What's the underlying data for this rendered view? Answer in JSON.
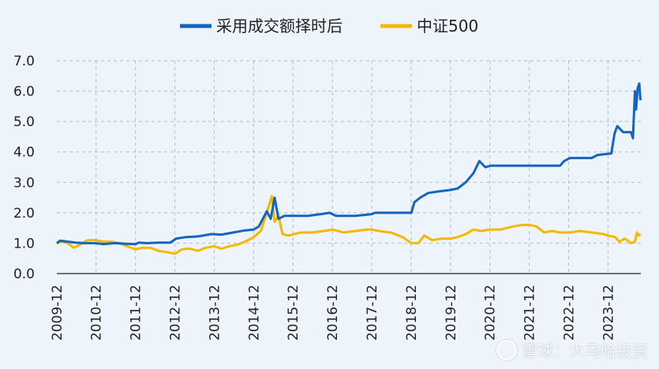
{
  "chart_data": {
    "type": "line",
    "title": "",
    "xlabel": "",
    "ylabel": "",
    "ylim": [
      0,
      7
    ],
    "xlim": [
      2009.92,
      2024.75
    ],
    "y_ticks": [
      "0.0",
      "1.0",
      "2.0",
      "3.0",
      "4.0",
      "5.0",
      "6.0",
      "7.0"
    ],
    "x_ticks": [
      "2009-12",
      "2010-12",
      "2011-12",
      "2012-12",
      "2013-12",
      "2014-12",
      "2015-12",
      "2016-12",
      "2017-12",
      "2018-12",
      "2019-12",
      "2020-12",
      "2021-12",
      "2022-12",
      "2023-12"
    ],
    "grid": true,
    "legend_position": "top-center",
    "series": [
      {
        "name": "采用成交额择时后",
        "color": "#1565c0",
        "points": [
          [
            2009.92,
            1.0
          ],
          [
            2010.0,
            1.08
          ],
          [
            2010.2,
            1.05
          ],
          [
            2010.4,
            1.02
          ],
          [
            2010.6,
            1.0
          ],
          [
            2010.9,
            1.0
          ],
          [
            2011.1,
            0.97
          ],
          [
            2011.4,
            1.0
          ],
          [
            2011.7,
            0.98
          ],
          [
            2011.92,
            0.97
          ],
          [
            2012.0,
            1.02
          ],
          [
            2012.2,
            1.0
          ],
          [
            2012.5,
            1.02
          ],
          [
            2012.8,
            1.02
          ],
          [
            2012.95,
            1.15
          ],
          [
            2013.2,
            1.2
          ],
          [
            2013.5,
            1.22
          ],
          [
            2013.85,
            1.3
          ],
          [
            2014.1,
            1.28
          ],
          [
            2014.4,
            1.35
          ],
          [
            2014.7,
            1.42
          ],
          [
            2014.92,
            1.45
          ],
          [
            2015.05,
            1.55
          ],
          [
            2015.25,
            2.05
          ],
          [
            2015.35,
            1.8
          ],
          [
            2015.45,
            2.5
          ],
          [
            2015.55,
            1.8
          ],
          [
            2015.7,
            1.9
          ],
          [
            2015.95,
            1.9
          ],
          [
            2016.3,
            1.9
          ],
          [
            2016.6,
            1.95
          ],
          [
            2016.85,
            2.0
          ],
          [
            2017.0,
            1.9
          ],
          [
            2017.5,
            1.9
          ],
          [
            2017.9,
            1.95
          ],
          [
            2018.0,
            2.0
          ],
          [
            2018.6,
            2.0
          ],
          [
            2018.92,
            2.0
          ],
          [
            2019.0,
            2.35
          ],
          [
            2019.15,
            2.5
          ],
          [
            2019.35,
            2.65
          ],
          [
            2019.6,
            2.7
          ],
          [
            2019.92,
            2.75
          ],
          [
            2020.1,
            2.8
          ],
          [
            2020.3,
            3.0
          ],
          [
            2020.5,
            3.3
          ],
          [
            2020.65,
            3.7
          ],
          [
            2020.8,
            3.5
          ],
          [
            2020.95,
            3.55
          ],
          [
            2021.5,
            3.55
          ],
          [
            2022.0,
            3.55
          ],
          [
            2022.7,
            3.55
          ],
          [
            2022.8,
            3.7
          ],
          [
            2022.95,
            3.8
          ],
          [
            2023.5,
            3.8
          ],
          [
            2023.65,
            3.9
          ],
          [
            2024.0,
            3.95
          ],
          [
            2024.08,
            4.6
          ],
          [
            2024.15,
            4.85
          ],
          [
            2024.3,
            4.65
          ],
          [
            2024.5,
            4.65
          ],
          [
            2024.55,
            4.45
          ],
          [
            2024.6,
            6.0
          ],
          [
            2024.63,
            5.4
          ],
          [
            2024.67,
            6.1
          ],
          [
            2024.71,
            6.25
          ],
          [
            2024.74,
            5.7
          ]
        ]
      },
      {
        "name": "中证500",
        "color": "#f5b800",
        "points": [
          [
            2009.92,
            1.0
          ],
          [
            2010.05,
            1.05
          ],
          [
            2010.2,
            1.0
          ],
          [
            2010.35,
            0.85
          ],
          [
            2010.5,
            0.95
          ],
          [
            2010.7,
            1.1
          ],
          [
            2010.9,
            1.1
          ],
          [
            2011.1,
            1.05
          ],
          [
            2011.3,
            1.05
          ],
          [
            2011.5,
            1.0
          ],
          [
            2011.7,
            0.9
          ],
          [
            2011.92,
            0.8
          ],
          [
            2012.1,
            0.85
          ],
          [
            2012.3,
            0.85
          ],
          [
            2012.5,
            0.75
          ],
          [
            2012.75,
            0.7
          ],
          [
            2012.92,
            0.65
          ],
          [
            2013.1,
            0.8
          ],
          [
            2013.3,
            0.82
          ],
          [
            2013.5,
            0.75
          ],
          [
            2013.7,
            0.85
          ],
          [
            2013.92,
            0.9
          ],
          [
            2014.1,
            0.82
          ],
          [
            2014.3,
            0.9
          ],
          [
            2014.5,
            0.95
          ],
          [
            2014.7,
            1.05
          ],
          [
            2014.92,
            1.2
          ],
          [
            2015.1,
            1.4
          ],
          [
            2015.25,
            2.0
          ],
          [
            2015.38,
            2.55
          ],
          [
            2015.45,
            1.7
          ],
          [
            2015.55,
            1.9
          ],
          [
            2015.65,
            1.3
          ],
          [
            2015.8,
            1.25
          ],
          [
            2015.95,
            1.3
          ],
          [
            2016.1,
            1.35
          ],
          [
            2016.4,
            1.35
          ],
          [
            2016.7,
            1.4
          ],
          [
            2016.92,
            1.45
          ],
          [
            2017.2,
            1.35
          ],
          [
            2017.5,
            1.4
          ],
          [
            2017.8,
            1.45
          ],
          [
            2017.92,
            1.45
          ],
          [
            2018.1,
            1.4
          ],
          [
            2018.4,
            1.35
          ],
          [
            2018.7,
            1.2
          ],
          [
            2018.92,
            1.0
          ],
          [
            2019.1,
            1.0
          ],
          [
            2019.25,
            1.25
          ],
          [
            2019.45,
            1.1
          ],
          [
            2019.7,
            1.15
          ],
          [
            2019.92,
            1.15
          ],
          [
            2020.1,
            1.2
          ],
          [
            2020.3,
            1.3
          ],
          [
            2020.5,
            1.45
          ],
          [
            2020.7,
            1.4
          ],
          [
            2020.92,
            1.45
          ],
          [
            2021.2,
            1.45
          ],
          [
            2021.5,
            1.55
          ],
          [
            2021.75,
            1.6
          ],
          [
            2021.92,
            1.6
          ],
          [
            2022.1,
            1.55
          ],
          [
            2022.3,
            1.35
          ],
          [
            2022.5,
            1.4
          ],
          [
            2022.7,
            1.35
          ],
          [
            2022.92,
            1.35
          ],
          [
            2023.2,
            1.4
          ],
          [
            2023.5,
            1.35
          ],
          [
            2023.8,
            1.3
          ],
          [
            2023.92,
            1.25
          ],
          [
            2024.1,
            1.2
          ],
          [
            2024.2,
            1.05
          ],
          [
            2024.35,
            1.15
          ],
          [
            2024.5,
            1.0
          ],
          [
            2024.6,
            1.05
          ],
          [
            2024.65,
            1.35
          ],
          [
            2024.7,
            1.25
          ],
          [
            2024.74,
            1.3
          ]
        ]
      }
    ]
  },
  "watermark": {
    "text": "雪球：大马哈投资"
  }
}
